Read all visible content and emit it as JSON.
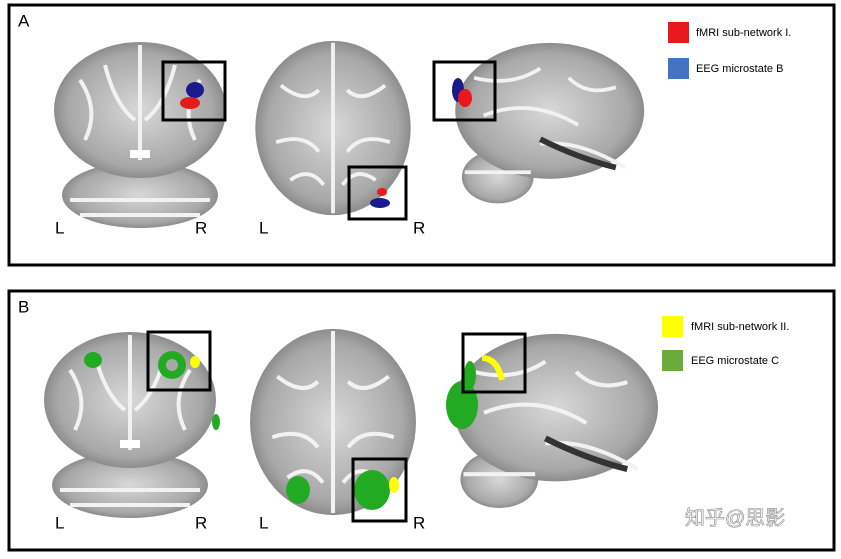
{
  "panels": [
    {
      "label": "A",
      "left": "L",
      "right": "R",
      "left2": "L",
      "right2": "R",
      "legend": [
        {
          "text": "fMRI sub-network I.",
          "color": "#e8191c"
        },
        {
          "text": "EEG microstate B",
          "color": "#4472c4"
        }
      ]
    },
    {
      "label": "B",
      "left": "L",
      "right": "R",
      "left2": "L",
      "right2": "R",
      "legend": [
        {
          "text": "fMRI sub-network II.",
          "color": "#ffff00"
        },
        {
          "text": "EEG microstate C",
          "color": "#6aab3c"
        }
      ]
    }
  ],
  "watermark": "知乎@思影"
}
